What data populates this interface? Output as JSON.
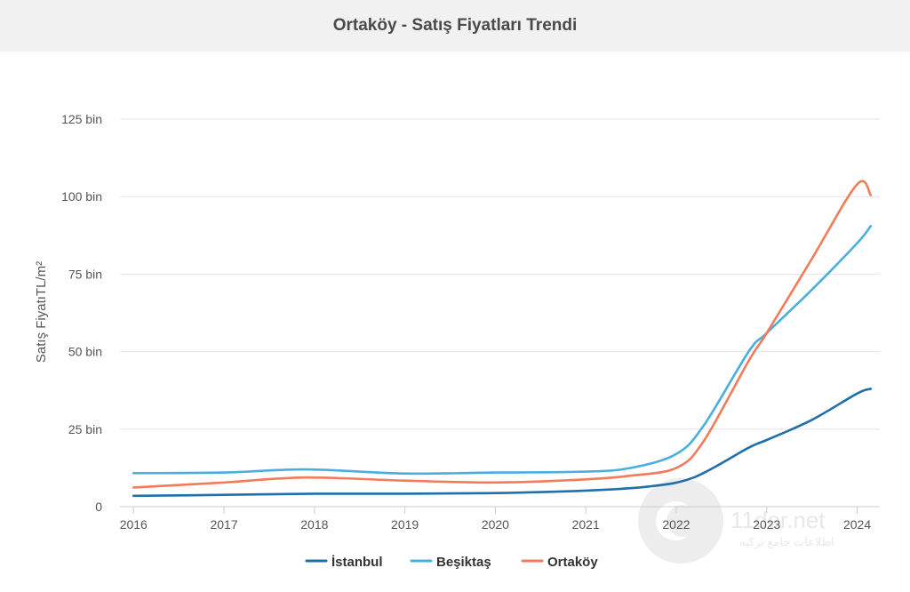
{
  "chart_data": {
    "type": "line",
    "title": "Ortaköy - Satış Fiyatları Trendi",
    "xlabel": "",
    "ylabel": "Satış FiyatıTL/m²",
    "x": [
      2016,
      2017,
      2018,
      2019,
      2020,
      2021,
      2022,
      2023,
      2024
    ],
    "x_tick_labels": [
      "2016",
      "2017",
      "2018",
      "2019",
      "2020",
      "2021",
      "2022",
      "2023",
      "2024"
    ],
    "y_ticks": [
      0,
      25000,
      50000,
      75000,
      100000,
      125000
    ],
    "y_tick_labels": [
      "0",
      "25 bin",
      "50 bin",
      "75 bin",
      "100 bin",
      "125 bin"
    ],
    "ylim": [
      0,
      125000
    ],
    "grid": true,
    "legend_position": "bottom",
    "series": [
      {
        "name": "İstanbul",
        "color": "#1f6fa8",
        "points": [
          [
            2016.0,
            3500
          ],
          [
            2017.0,
            3800
          ],
          [
            2018.0,
            4200
          ],
          [
            2019.0,
            4200
          ],
          [
            2020.0,
            4400
          ],
          [
            2021.0,
            5200
          ],
          [
            2021.7,
            6500
          ],
          [
            2022.2,
            9500
          ],
          [
            2022.8,
            19000
          ],
          [
            2023.0,
            21500
          ],
          [
            2023.5,
            28000
          ],
          [
            2024.0,
            36500
          ],
          [
            2024.15,
            38000
          ]
        ]
      },
      {
        "name": "Beşiktaş",
        "color": "#4aafe0",
        "points": [
          [
            2016.0,
            10800
          ],
          [
            2017.0,
            11000
          ],
          [
            2017.9,
            12000
          ],
          [
            2019.0,
            10700
          ],
          [
            2020.0,
            11000
          ],
          [
            2021.0,
            11300
          ],
          [
            2021.5,
            12500
          ],
          [
            2022.0,
            17000
          ],
          [
            2022.3,
            26000
          ],
          [
            2022.8,
            50000
          ],
          [
            2023.0,
            56000
          ],
          [
            2023.5,
            70000
          ],
          [
            2024.0,
            85000
          ],
          [
            2024.15,
            90500
          ]
        ]
      },
      {
        "name": "Ortaköy",
        "color": "#f27b5a",
        "points": [
          [
            2016.0,
            6200
          ],
          [
            2017.0,
            7800
          ],
          [
            2017.9,
            9400
          ],
          [
            2019.0,
            8400
          ],
          [
            2020.0,
            7800
          ],
          [
            2021.0,
            8800
          ],
          [
            2021.5,
            10000
          ],
          [
            2022.0,
            12500
          ],
          [
            2022.3,
            21000
          ],
          [
            2022.8,
            47000
          ],
          [
            2023.0,
            56000
          ],
          [
            2023.5,
            80000
          ],
          [
            2024.0,
            104000
          ],
          [
            2024.15,
            100500
          ]
        ]
      }
    ]
  },
  "watermark": {
    "text": "11der.net",
    "subtext": "اطلاعات جامع ترکیه"
  }
}
